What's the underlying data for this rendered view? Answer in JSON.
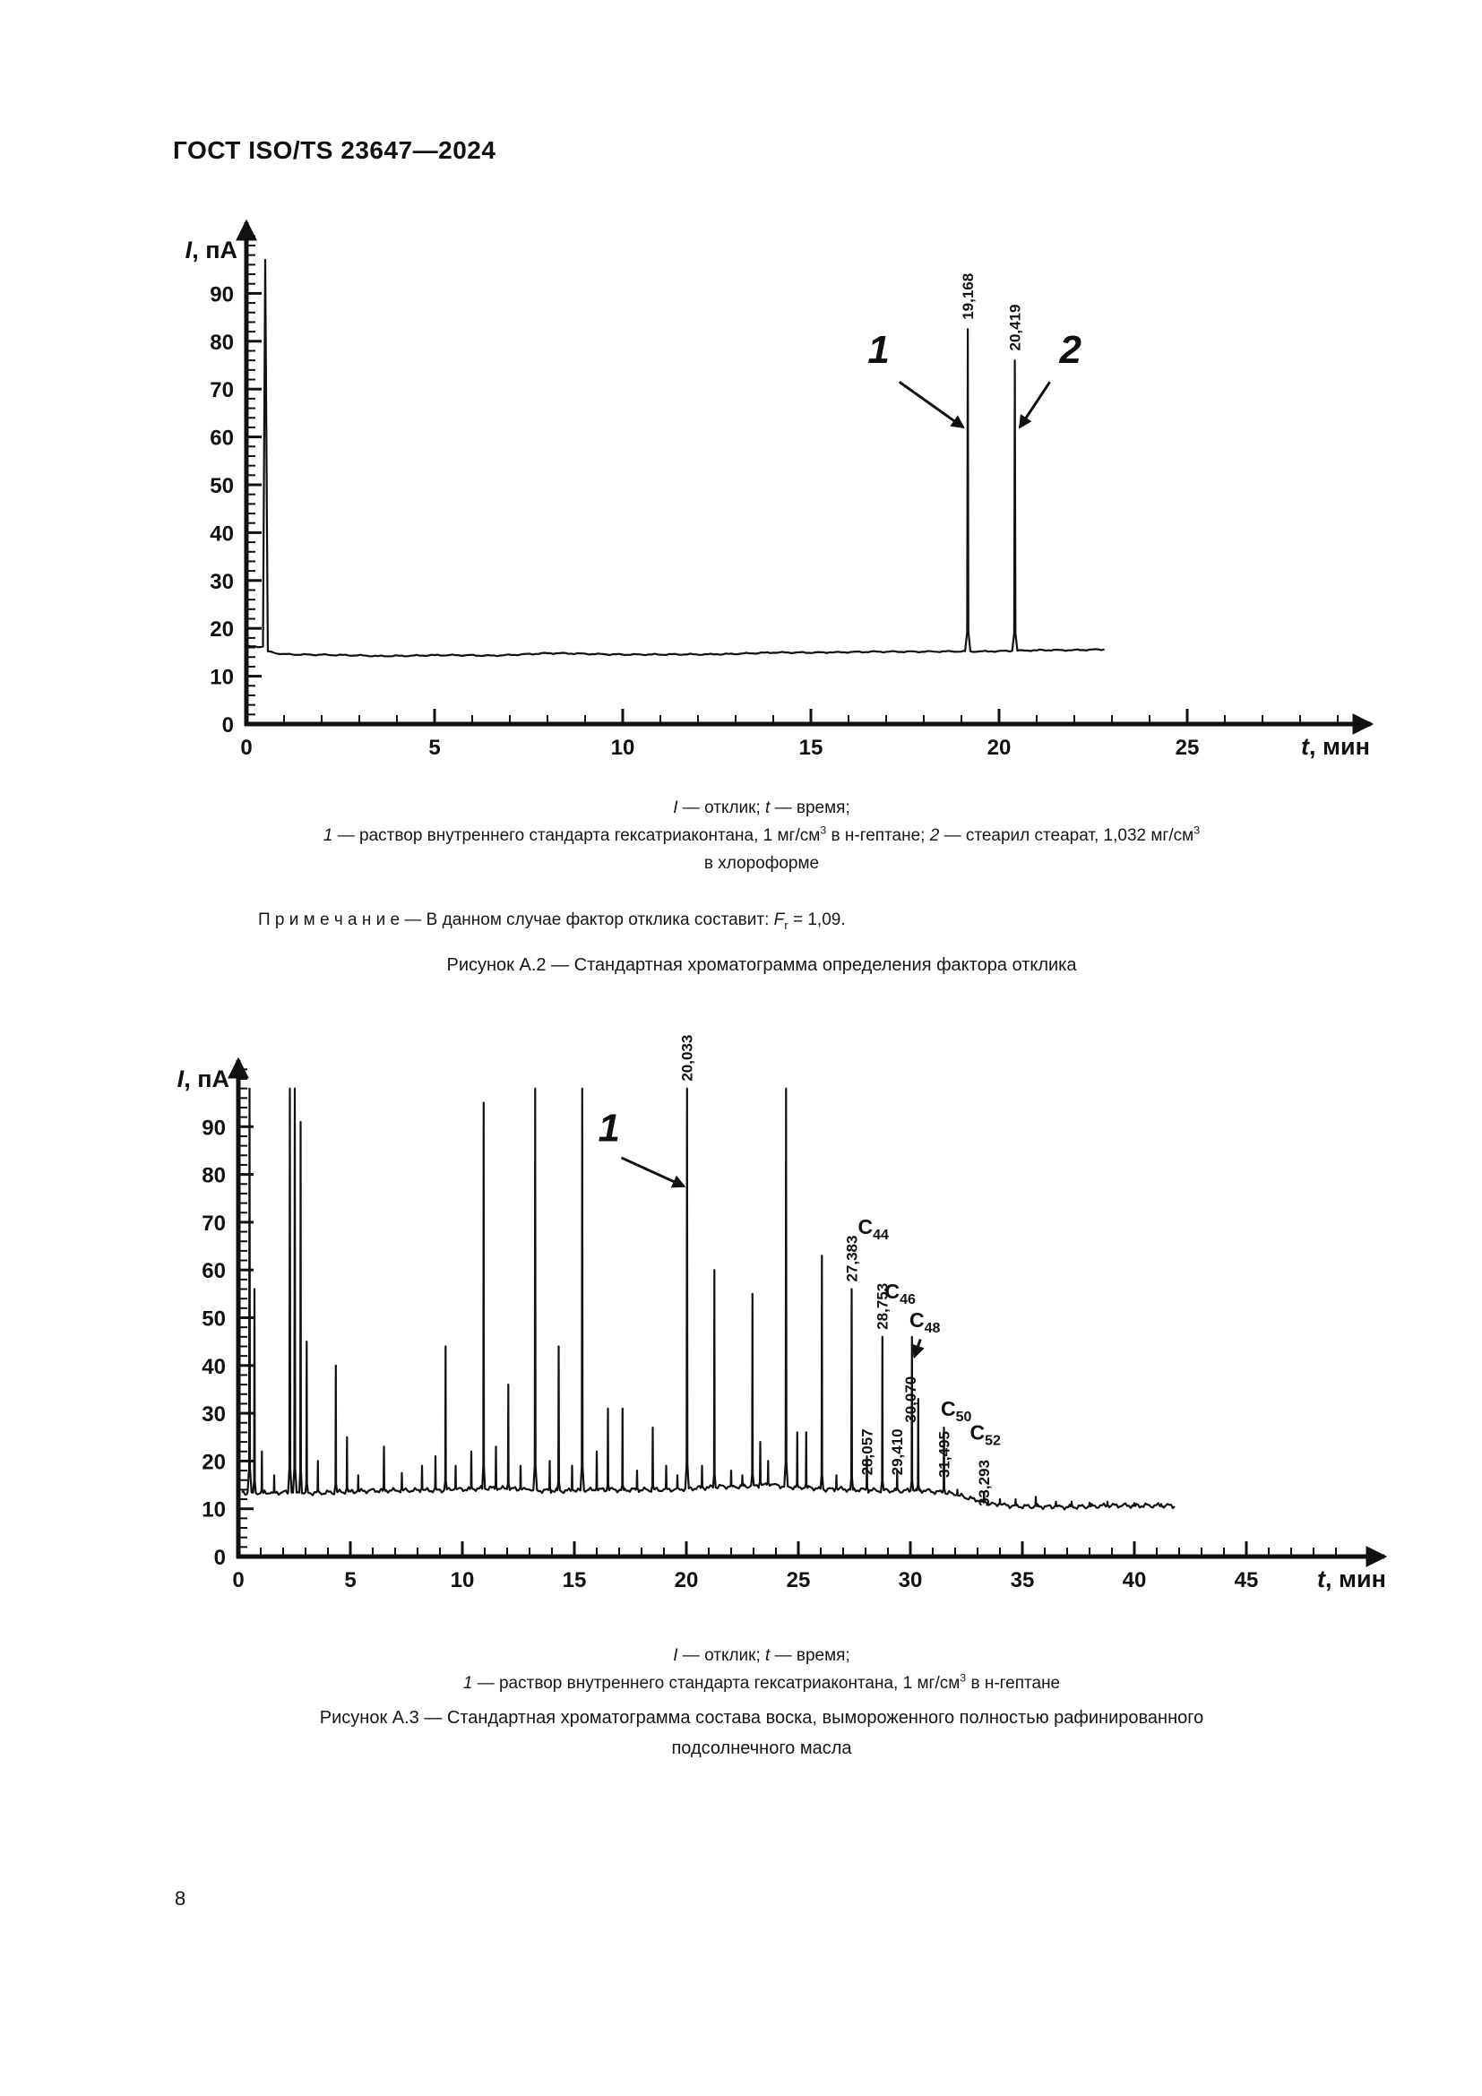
{
  "page": {
    "header": "ГОСТ ISO/TS 23647—2024",
    "page_number": "8"
  },
  "rich": {
    "a2_legend_line1": [
      {
        "t": "I",
        "s": "i"
      },
      {
        "t": " — отклик; "
      },
      {
        "t": "t",
        "s": "i"
      },
      {
        "t": " — время;"
      }
    ],
    "a2_legend_line2": [
      {
        "t": "1",
        "s": "i"
      },
      {
        "t": " — раствор внутреннего стандарта гексатриаконтана, 1 мг/см"
      },
      {
        "t": "3",
        "s": "sup"
      },
      {
        "t": " в н-гептане; "
      },
      {
        "t": "2",
        "s": "i"
      },
      {
        "t": " — стеарил стеарат, 1,032 мг/см"
      },
      {
        "t": "3",
        "s": "sup"
      }
    ],
    "a2_legend_line3": [
      {
        "t": "в хлороформе"
      }
    ],
    "a2_note": [
      {
        "t": "П р и м е ч а н и е — В данном случае фактор отклика составит: "
      },
      {
        "t": "F",
        "s": "i"
      },
      {
        "t": "r",
        "s": "sub"
      },
      {
        "t": " = 1,09."
      }
    ],
    "a2_caption": [
      {
        "t": "Рисунок А.2 — Стандартная хроматограмма определения фактора отклика"
      }
    ],
    "a3_legend_line1": [
      {
        "t": "I",
        "s": "i"
      },
      {
        "t": " — отклик; "
      },
      {
        "t": "t",
        "s": "i"
      },
      {
        "t": " — время;"
      }
    ],
    "a3_legend_line2": [
      {
        "t": "1",
        "s": "i"
      },
      {
        "t": " — раствор внутреннего стандарта гексатриаконтана, 1 мг/см"
      },
      {
        "t": "3",
        "s": "sup"
      },
      {
        "t": " в н-гептане"
      }
    ],
    "a3_caption_line1": [
      {
        "t": "Рисунок А.3 — Стандартная хроматограмма состава воска, вымороженного полностью рафинированного"
      }
    ],
    "a3_caption_line2": [
      {
        "t": "подсолнечного масла"
      }
    ]
  },
  "chart_data": [
    {
      "type": "line",
      "title": "Рисунок А.2 — Стандартная хроматограмма определения фактора отклика",
      "xlabel": "t, мин",
      "ylabel": "I, пА",
      "xlabel_rich": [
        {
          "t": "t",
          "s": "i"
        },
        {
          "t": ", мин"
        }
      ],
      "ylabel_rich": [
        {
          "t": "I",
          "s": "i"
        },
        {
          "t": ", пА"
        }
      ],
      "xlim": [
        0,
        30
      ],
      "ylim": [
        0,
        106
      ],
      "x_ticks_labeled": [
        0,
        5,
        10,
        15,
        20,
        25
      ],
      "x_minor_step": 1,
      "x_max_tick": 29,
      "y_ticks_labeled": [
        0,
        10,
        20,
        30,
        40,
        50,
        60,
        70,
        80,
        90
      ],
      "y_minor_step": 2,
      "y_max_tick": 102,
      "grid": false,
      "noise_amp": 0.1,
      "baseline": [
        [
          0,
          16.2
        ],
        [
          0.44,
          16.2
        ],
        [
          0.5,
          97
        ],
        [
          0.57,
          15.2
        ],
        [
          0.9,
          14.6
        ],
        [
          2,
          14.5
        ],
        [
          3.5,
          14.2
        ],
        [
          5,
          14.4
        ],
        [
          6.5,
          14.3
        ],
        [
          8,
          14.8
        ],
        [
          9.5,
          14.6
        ],
        [
          11,
          14.5
        ],
        [
          12.5,
          14.6
        ],
        [
          14,
          14.9
        ],
        [
          15.5,
          15.0
        ],
        [
          17,
          15.1
        ],
        [
          18.5,
          15.2
        ],
        [
          19.8,
          15.2
        ],
        [
          21,
          15.4
        ],
        [
          22,
          15.5
        ],
        [
          22.8,
          15.6
        ]
      ],
      "peaks": [
        [
          19.168,
          82.5,
          0.14
        ],
        [
          20.419,
          76,
          0.14
        ]
      ],
      "peak_time_labels": [
        {
          "text": "19,168",
          "t": 19.168,
          "i": 84.5
        },
        {
          "text": "20,419",
          "t": 20.419,
          "i": 78
        }
      ],
      "callouts": [
        {
          "label": "1",
          "t": 16.8,
          "i": 75.5,
          "arrow": [
            17.35,
            71.5,
            19.05,
            62
          ]
        },
        {
          "label": "2",
          "t": 21.9,
          "i": 75.5,
          "arrow": [
            21.35,
            71.5,
            20.55,
            62
          ]
        }
      ],
      "extra_arrows": [],
      "c_labels": [],
      "geom": {
        "ox": 95,
        "oy": 608,
        "xpx": 42,
        "ypx": 5.34,
        "xend": 1350,
        "ytop": 48,
        "tlabel_x": 1272,
        "ylabel_x": 85,
        "ylabel_y": 88
      }
    },
    {
      "type": "line",
      "title": "Рисунок А.3 — Стандартная хроматограмма состава воска, вымороженного полностью рафинированного подсолнечного масла",
      "xlabel": "t, мин",
      "ylabel": "I, пА",
      "xlabel_rich": [
        {
          "t": "t",
          "s": "i"
        },
        {
          "t": ", мин"
        }
      ],
      "ylabel_rich": [
        {
          "t": "I",
          "s": "i"
        },
        {
          "t": ", пА"
        }
      ],
      "xlim": [
        0,
        51
      ],
      "ylim": [
        0,
        106
      ],
      "x_ticks_labeled": [
        0,
        5,
        10,
        15,
        20,
        25,
        30,
        35,
        40,
        45
      ],
      "x_minor_step": 1,
      "x_max_tick": 49,
      "y_ticks_labeled": [
        0,
        10,
        20,
        30,
        40,
        50,
        60,
        70,
        80,
        90
      ],
      "y_minor_step": 2,
      "y_max_tick": 102,
      "grid": false,
      "noise_amp": 0.35,
      "baseline": [
        [
          0.15,
          13.5
        ],
        [
          1,
          13.3
        ],
        [
          3,
          13.4
        ],
        [
          5,
          13.6
        ],
        [
          7,
          13.8
        ],
        [
          9,
          14.0
        ],
        [
          11,
          14.2
        ],
        [
          13,
          14.0
        ],
        [
          15,
          13.8
        ],
        [
          17,
          13.9
        ],
        [
          19,
          14.1
        ],
        [
          21,
          14.4
        ],
        [
          22.5,
          14.8
        ],
        [
          23.8,
          15.1
        ],
        [
          25,
          14.5
        ],
        [
          26,
          14.2
        ],
        [
          27,
          14.0
        ],
        [
          29,
          13.9
        ],
        [
          30.6,
          13.8
        ],
        [
          31.5,
          13.4
        ],
        [
          32.2,
          12.7
        ],
        [
          33,
          11.7
        ],
        [
          33.8,
          11.0
        ],
        [
          34.6,
          10.7
        ],
        [
          36,
          10.5
        ],
        [
          38,
          10.5
        ],
        [
          40,
          10.6
        ],
        [
          41.8,
          10.5
        ]
      ],
      "peaks": [
        [
          0.5,
          98,
          0.18
        ],
        [
          0.72,
          56
        ],
        [
          1.05,
          22
        ],
        [
          1.6,
          17
        ],
        [
          2.3,
          98,
          0.16
        ],
        [
          2.52,
          98,
          0.16
        ],
        [
          2.78,
          91
        ],
        [
          3.05,
          45
        ],
        [
          3.55,
          20
        ],
        [
          4.35,
          40
        ],
        [
          4.85,
          25
        ],
        [
          5.35,
          17
        ],
        [
          6.5,
          23
        ],
        [
          7.3,
          17.5
        ],
        [
          8.2,
          19
        ],
        [
          8.8,
          21
        ],
        [
          9.25,
          44
        ],
        [
          9.7,
          19
        ],
        [
          10.4,
          22
        ],
        [
          10.95,
          95
        ],
        [
          11.5,
          23
        ],
        [
          12.05,
          36
        ],
        [
          12.6,
          19
        ],
        [
          13.25,
          98,
          0.16
        ],
        [
          13.9,
          20
        ],
        [
          14.3,
          44
        ],
        [
          14.9,
          19
        ],
        [
          15.35,
          98,
          0.16
        ],
        [
          16.0,
          22
        ],
        [
          16.5,
          31
        ],
        [
          17.15,
          31
        ],
        [
          17.8,
          18
        ],
        [
          18.5,
          27
        ],
        [
          19.1,
          19
        ],
        [
          19.6,
          17
        ],
        [
          20.03,
          98,
          0.16
        ],
        [
          20.7,
          19
        ],
        [
          21.25,
          60
        ],
        [
          22.0,
          18
        ],
        [
          22.5,
          17
        ],
        [
          22.95,
          55
        ],
        [
          23.3,
          24
        ],
        [
          23.65,
          20
        ],
        [
          24.45,
          98,
          0.16
        ],
        [
          24.95,
          26
        ],
        [
          25.35,
          26
        ],
        [
          26.05,
          63
        ],
        [
          26.7,
          17
        ],
        [
          27.38,
          56
        ],
        [
          28.06,
          21
        ],
        [
          28.75,
          46
        ],
        [
          29.41,
          18
        ],
        [
          30.07,
          46
        ],
        [
          30.35,
          33
        ],
        [
          31.5,
          27
        ],
        [
          32.1,
          14
        ],
        [
          33.29,
          13.5
        ],
        [
          34.0,
          12
        ],
        [
          34.7,
          12
        ],
        [
          35.6,
          12.5
        ],
        [
          36.5,
          11.5
        ],
        [
          37.2,
          11.5
        ],
        [
          38.0,
          11.3
        ],
        [
          38.8,
          11.5
        ],
        [
          40.0,
          11.2
        ],
        [
          41.2,
          11
        ]
      ],
      "peak_time_labels": [
        {
          "text": "20,033",
          "t": 20.03,
          "i": 99.5
        },
        {
          "text": "27,383",
          "t": 27.38,
          "i": 57.5
        },
        {
          "text": "28,057",
          "t": 28.06,
          "i": 17
        },
        {
          "text": "28,753",
          "t": 28.75,
          "i": 47.5
        },
        {
          "text": "29,410",
          "t": 29.41,
          "i": 17
        },
        {
          "text": "30,070",
          "t": 30.0,
          "i": 28
        },
        {
          "text": "31,495",
          "t": 31.5,
          "i": 16.5
        },
        {
          "text": "33,293",
          "t": 33.29,
          "i": 10.5
        }
      ],
      "c_labels": [
        {
          "sub": "44",
          "t": 28.35,
          "i": 67.5
        },
        {
          "sub": "46",
          "t": 29.55,
          "i": 54
        },
        {
          "sub": "48",
          "t": 30.65,
          "i": 48
        },
        {
          "sub": "50",
          "t": 32.05,
          "i": 29.5
        },
        {
          "sub": "52",
          "t": 33.35,
          "i": 24.5
        }
      ],
      "callouts": [
        {
          "label": "1",
          "t": 16.55,
          "i": 87,
          "arrow": [
            17.1,
            83.5,
            19.9,
            77.5
          ]
        }
      ],
      "extra_arrows": [
        [
          30.45,
          45.5,
          30.18,
          41.8
        ]
      ],
      "geom": {
        "ox": 86,
        "oy": 642,
        "xpx": 25,
        "ypx": 5.33,
        "xend": 1365,
        "ytop": 88,
        "tlabel_x": 1290,
        "ylabel_x": 76,
        "ylabel_y": 118
      }
    }
  ]
}
